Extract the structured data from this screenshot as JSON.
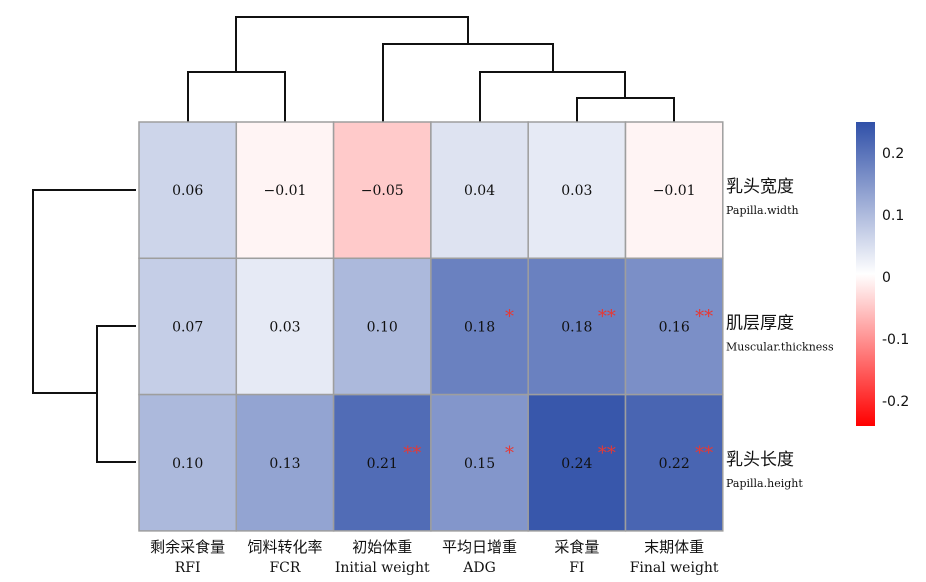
{
  "chart_data": {
    "type": "heatmap",
    "rows": [
      {
        "zh": "乳头宽度",
        "en": "Papilla.width"
      },
      {
        "zh": "肌层厚度",
        "en": "Muscular.thickness"
      },
      {
        "zh": "乳头长度",
        "en": "Papilla.height"
      }
    ],
    "columns": [
      {
        "zh": "剩余采食量",
        "en": "RFI"
      },
      {
        "zh": "饲料转化率",
        "en": "FCR"
      },
      {
        "zh": "初始体重",
        "en": "Initial weight"
      },
      {
        "zh": "平均日增重",
        "en": "ADG"
      },
      {
        "zh": "采食量",
        "en": "FI"
      },
      {
        "zh": "末期体重",
        "en": "Final weight"
      }
    ],
    "values": [
      [
        0.06,
        -0.01,
        -0.05,
        0.04,
        0.03,
        -0.01
      ],
      [
        0.07,
        0.03,
        0.1,
        0.18,
        0.18,
        0.16
      ],
      [
        0.1,
        0.13,
        0.21,
        0.15,
        0.24,
        0.22
      ]
    ],
    "labels": [
      [
        "0.06",
        "−0.01",
        "−0.05",
        "0.04",
        "0.03",
        "−0.01"
      ],
      [
        "0.07",
        "0.03",
        "0.10",
        "0.18",
        "0.18",
        "0.16"
      ],
      [
        "0.10",
        "0.13",
        "0.21",
        "0.15",
        "0.24",
        "0.22"
      ]
    ],
    "significance": [
      [
        "",
        "",
        "",
        "",
        "",
        ""
      ],
      [
        "",
        "",
        "",
        "*",
        "**",
        "**"
      ],
      [
        "",
        "",
        "**",
        "*",
        "**",
        "**"
      ]
    ],
    "colorbar": {
      "range": [
        -0.24,
        0.25
      ],
      "ticks": [
        {
          "value": 0.2,
          "label": "0.2"
        },
        {
          "value": 0.1,
          "label": "0.1"
        },
        {
          "value": 0,
          "label": "0"
        },
        {
          "value": -0.1,
          "label": "-0.1"
        },
        {
          "value": -0.2,
          "label": "-0.2"
        }
      ],
      "colors": {
        "negative": "#ff0000",
        "zero": "#ffffff",
        "positive": "#3050a8"
      }
    },
    "colors": {
      "grid": "#9e9e9e",
      "significance": "#e53935"
    },
    "col_dendrogram": "((RFI),(FCR)),((Initial weight),((ADG),((FI),(Final weight))))",
    "row_dendrogram": "(Papilla.width,(Muscular.thickness,Papilla.height))"
  }
}
